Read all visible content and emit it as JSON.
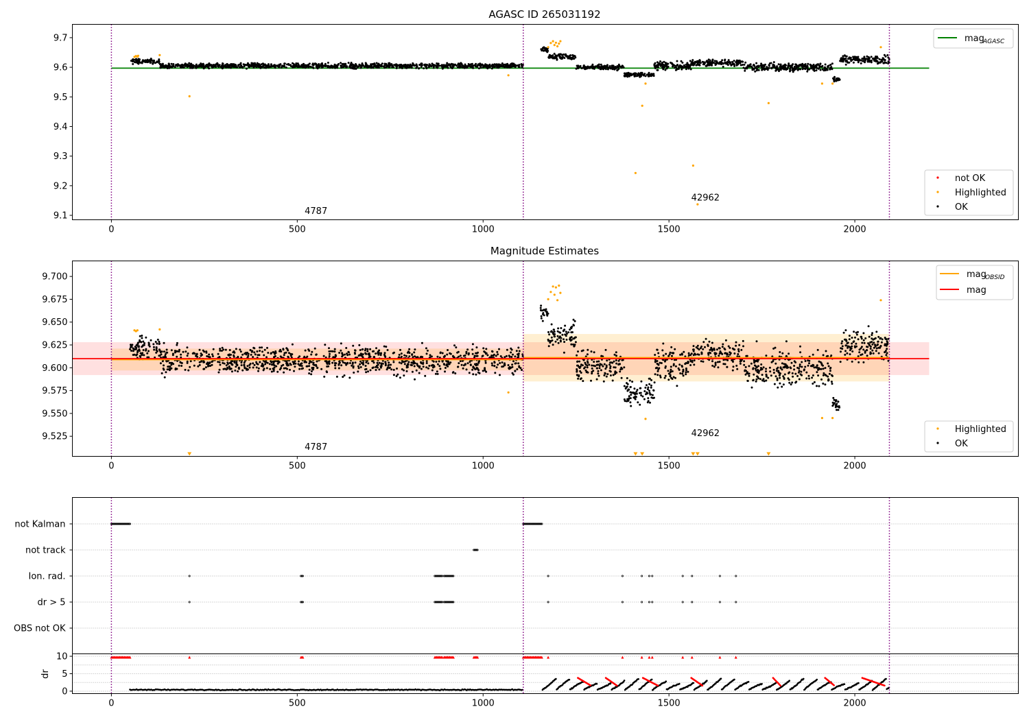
{
  "chart_data": [
    {
      "type": "scatter",
      "title": "AGASC ID 265031192",
      "xlim": [
        -105,
        2440
      ],
      "ylim": [
        9.085,
        9.745
      ],
      "xticks": [
        0,
        500,
        1000,
        1500,
        2000
      ],
      "yticks": [
        9.1,
        9.2,
        9.3,
        9.4,
        9.5,
        9.6,
        9.7
      ],
      "grid": false,
      "obs_boundaries": [
        0,
        1108,
        2093
      ],
      "obs_labels": [
        {
          "text": "4787",
          "x": 520,
          "y": 9.105
        },
        {
          "text": "42962",
          "x": 1560,
          "y": 9.15
        }
      ],
      "mag_agasc": {
        "value": 9.597,
        "x_range": [
          0,
          2200
        ],
        "color": "#008000"
      },
      "legend_line": {
        "label": "mag",
        "sub": "AGASC",
        "position": "upper right"
      },
      "legend_points": {
        "position": "lower right",
        "labels": [
          "not OK",
          "Highlighted",
          "OK"
        ]
      },
      "series": [
        {
          "name": "not OK",
          "color": "#ff0000"
        },
        {
          "name": "Highlighted",
          "color": "#ffa500"
        },
        {
          "name": "OK",
          "color": "#000000"
        }
      ],
      "highlighted_points": [
        [
          62,
          9.635
        ],
        [
          66,
          9.638
        ],
        [
          70,
          9.636
        ],
        [
          72,
          9.639
        ],
        [
          130,
          9.641
        ],
        [
          210,
          9.502
        ],
        [
          1068,
          9.573
        ],
        [
          1175,
          9.668
        ],
        [
          1182,
          9.682
        ],
        [
          1188,
          9.688
        ],
        [
          1192,
          9.675
        ],
        [
          1196,
          9.683
        ],
        [
          1200,
          9.671
        ],
        [
          1204,
          9.68
        ],
        [
          1208,
          9.688
        ],
        [
          1410,
          9.243
        ],
        [
          1428,
          9.47
        ],
        [
          1437,
          9.545
        ],
        [
          1565,
          9.268
        ],
        [
          1577,
          9.137
        ],
        [
          1768,
          9.479
        ],
        [
          1912,
          9.545
        ],
        [
          1940,
          9.545
        ],
        [
          2070,
          9.668
        ]
      ],
      "ok_segments": [
        {
          "x": [
            50,
            130
          ],
          "level": 9.62,
          "spread": 0.012
        },
        {
          "x": [
            130,
            1108
          ],
          "level": 9.605,
          "spread": 0.012
        },
        {
          "x": [
            1155,
            1175
          ],
          "level": 9.66,
          "spread": 0.012
        },
        {
          "x": [
            1175,
            1250
          ],
          "level": 9.635,
          "spread": 0.015
        },
        {
          "x": [
            1250,
            1380
          ],
          "level": 9.6,
          "spread": 0.012
        },
        {
          "x": [
            1380,
            1460
          ],
          "level": 9.575,
          "spread": 0.012
        },
        {
          "x": [
            1460,
            1560
          ],
          "level": 9.605,
          "spread": 0.02
        },
        {
          "x": [
            1560,
            1700
          ],
          "level": 9.615,
          "spread": 0.015
        },
        {
          "x": [
            1700,
            1940
          ],
          "level": 9.6,
          "spread": 0.02
        },
        {
          "x": [
            1940,
            1960
          ],
          "level": 9.56,
          "spread": 0.01
        },
        {
          "x": [
            1960,
            2093
          ],
          "level": 9.625,
          "spread": 0.02
        }
      ]
    },
    {
      "type": "scatter",
      "title": "Magnitude Estimates",
      "xlim": [
        -105,
        2440
      ],
      "ylim": [
        9.503,
        9.717
      ],
      "xticks": [
        0,
        500,
        1000,
        1500,
        2000
      ],
      "yticks": [
        9.525,
        9.55,
        9.575,
        9.6,
        9.625,
        9.65,
        9.675,
        9.7
      ],
      "grid": false,
      "obs_boundaries": [
        0,
        1108,
        2093
      ],
      "obs_labels": [
        {
          "text": "4787",
          "x": 520,
          "y": 9.51
        },
        {
          "text": "42962",
          "x": 1560,
          "y": 9.525
        }
      ],
      "mag": {
        "value": 9.61,
        "band": [
          9.592,
          9.628
        ],
        "x_range": [
          -105,
          2200
        ],
        "color": "#ff0000"
      },
      "mag_obsid": [
        {
          "x_range": [
            0,
            1108
          ],
          "value": 9.609,
          "band": [
            9.597,
            9.621
          ]
        },
        {
          "x_range": [
            1108,
            2093
          ],
          "value": 9.611,
          "band": [
            9.585,
            9.637
          ]
        }
      ],
      "legend_line": {
        "labels": [
          {
            "text": "mag",
            "sub": "OBSID",
            "color": "#ffa500"
          },
          {
            "text": "mag",
            "sub": "",
            "color": "#ff0000"
          }
        ],
        "position": "upper right"
      },
      "legend_points": {
        "position": "lower right",
        "labels": [
          "Highlighted",
          "OK"
        ]
      },
      "series": [
        {
          "name": "Highlighted",
          "color": "#ffa500"
        },
        {
          "name": "OK",
          "color": "#000000"
        }
      ],
      "highlighted_points": [
        [
          62,
          9.641
        ],
        [
          66,
          9.64
        ],
        [
          70,
          9.641
        ],
        [
          130,
          9.642
        ],
        [
          1068,
          9.573
        ],
        [
          1175,
          9.675
        ],
        [
          1182,
          9.683
        ],
        [
          1188,
          9.689
        ],
        [
          1192,
          9.68
        ],
        [
          1196,
          9.688
        ],
        [
          1200,
          9.674
        ],
        [
          1204,
          9.69
        ],
        [
          1208,
          9.682
        ],
        [
          1437,
          9.544
        ],
        [
          1912,
          9.545
        ],
        [
          1940,
          9.545
        ],
        [
          2070,
          9.674
        ]
      ],
      "clipped_markers_x": [
        210,
        1410,
        1428,
        1565,
        1577,
        1768
      ],
      "ok_segments": [
        {
          "x": [
            50,
            130
          ],
          "level": 9.622,
          "spread": 0.018
        },
        {
          "x": [
            130,
            1108
          ],
          "level": 9.608,
          "spread": 0.022
        },
        {
          "x": [
            1155,
            1175
          ],
          "level": 9.66,
          "spread": 0.012
        },
        {
          "x": [
            1175,
            1250
          ],
          "level": 9.635,
          "spread": 0.02
        },
        {
          "x": [
            1250,
            1380
          ],
          "level": 9.602,
          "spread": 0.025
        },
        {
          "x": [
            1380,
            1460
          ],
          "level": 9.572,
          "spread": 0.02
        },
        {
          "x": [
            1460,
            1560
          ],
          "level": 9.605,
          "spread": 0.03
        },
        {
          "x": [
            1560,
            1700
          ],
          "level": 9.615,
          "spread": 0.025
        },
        {
          "x": [
            1700,
            1940
          ],
          "level": 9.6,
          "spread": 0.03
        },
        {
          "x": [
            1940,
            1960
          ],
          "level": 9.56,
          "spread": 0.01
        },
        {
          "x": [
            1960,
            2093
          ],
          "level": 9.625,
          "spread": 0.025
        }
      ]
    },
    {
      "type": "scatter",
      "title": "",
      "xlim": [
        -105,
        2440
      ],
      "xticks": [
        0,
        500,
        1000,
        1500,
        2000
      ],
      "categories": [
        "not Kalman",
        "not track",
        "Ion. rad.",
        "dr > 5",
        "OBS not OK"
      ],
      "obs_boundaries": [
        0,
        1108,
        2093
      ],
      "flags": {
        "not Kalman": [
          [
            0,
            50
          ],
          [
            1108,
            1160
          ]
        ],
        "not track": [
          [
            975,
            985
          ]
        ],
        "Ion. rad.": [
          [
            210,
            212
          ],
          [
            510,
            515
          ],
          [
            870,
            890
          ],
          [
            895,
            920
          ],
          [
            1175,
            1177
          ],
          [
            1375,
            1377
          ],
          [
            1427,
            1429
          ],
          [
            1447,
            1449
          ],
          [
            1455,
            1457
          ],
          [
            1537,
            1539
          ],
          [
            1562,
            1564
          ],
          [
            1637,
            1639
          ],
          [
            1680,
            1682
          ]
        ],
        "dr > 5": [
          [
            210,
            212
          ],
          [
            510,
            515
          ],
          [
            870,
            890
          ],
          [
            895,
            920
          ],
          [
            1175,
            1177
          ],
          [
            1375,
            1377
          ],
          [
            1427,
            1429
          ],
          [
            1447,
            1449
          ],
          [
            1455,
            1457
          ],
          [
            1537,
            1539
          ],
          [
            1562,
            1564
          ],
          [
            1637,
            1639
          ],
          [
            1680,
            1682
          ]
        ],
        "OBS not OK": []
      }
    },
    {
      "type": "scatter",
      "title": "",
      "ylabel": "dr",
      "xlim": [
        -105,
        2440
      ],
      "ylim": [
        -0.7,
        10.7
      ],
      "xticks": [
        0,
        500,
        1000,
        1500,
        2000
      ],
      "yticks": [
        0,
        5,
        10
      ],
      "grid": true,
      "obs_boundaries": [
        0,
        1108,
        2093
      ],
      "clipped_red_segments": [
        [
          0,
          50
        ],
        [
          210,
          212
        ],
        [
          510,
          515
        ],
        [
          870,
          890
        ],
        [
          895,
          920
        ],
        [
          975,
          985
        ],
        [
          1108,
          1160
        ],
        [
          1175,
          1177
        ],
        [
          1375,
          1377
        ],
        [
          1427,
          1429
        ],
        [
          1447,
          1449
        ],
        [
          1455,
          1457
        ],
        [
          1537,
          1539
        ],
        [
          1562,
          1564
        ],
        [
          1637,
          1639
        ],
        [
          1680,
          1682
        ]
      ],
      "ok_level": {
        "first_obs": 0.4,
        "second_obs_range": [
          0.3,
          3.8
        ]
      },
      "red_arcs": [
        [
          1255,
          1290
        ],
        [
          1330,
          1360
        ],
        [
          1430,
          1470
        ],
        [
          1560,
          1590
        ],
        [
          1780,
          1800
        ],
        [
          1920,
          1945
        ],
        [
          2020,
          2080
        ]
      ]
    }
  ]
}
